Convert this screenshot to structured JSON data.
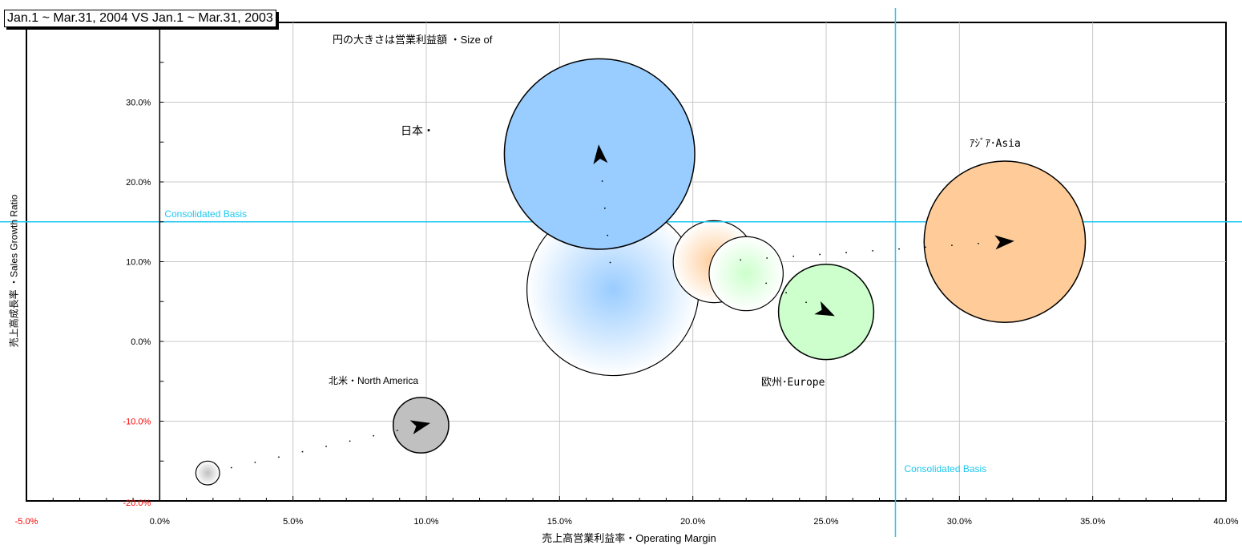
{
  "title": "Jan.1 ~ Mar.31, 2004 VS Jan.1 ~ Mar.31, 2003",
  "subtitle": "円の大きさは営業利益額 ・Size of",
  "colors": {
    "grid": "#c8c8c8",
    "reference": "#1ec8f0",
    "negative_tick": "#ff0000"
  },
  "chart_data": {
    "type": "bubble",
    "xlabel": "売上高営業利益率・Operating Margin",
    "ylabel": "売上高成長率 ・Sales Growth Ratio",
    "xlim": [
      -5,
      40
    ],
    "ylim": [
      -20,
      40
    ],
    "x_ticks": [
      "-5.0%",
      "0.0%",
      "5.0%",
      "10.0%",
      "15.0%",
      "20.0%",
      "25.0%",
      "30.0%",
      "35.0%",
      "40.0%"
    ],
    "y_ticks": [
      "-20.0%",
      "-10.0%",
      "0.0%",
      "10.0%",
      "20.0%",
      "30.0%",
      "40.0%"
    ],
    "grid": true,
    "reference_lines": [
      {
        "axis": "y",
        "value": 15,
        "label": "Consolidated Basis"
      },
      {
        "axis": "x",
        "value": 27.6,
        "label": "Consolidated Basis"
      }
    ],
    "series": [
      {
        "name": "日本・",
        "color": "#99ccff",
        "from": {
          "x": 17.0,
          "y": 6.5,
          "size": 3.25
        },
        "to": {
          "x": 16.5,
          "y": 23.5,
          "size": 3.6
        }
      },
      {
        "name": "北米・North America",
        "color": "#c0c0c0",
        "from": {
          "x": 1.8,
          "y": -16.5,
          "size": 0.45
        },
        "to": {
          "x": 9.8,
          "y": -10.5,
          "size": 1.05
        }
      },
      {
        "name": "ｱｼﾞｱ･Asia",
        "color": "#ffcc99",
        "from": {
          "x": 20.8,
          "y": 10.0,
          "size": 1.55
        },
        "to": {
          "x": 31.7,
          "y": 12.5,
          "size": 3.05
        }
      },
      {
        "name": "欧州･Europe",
        "color": "#ccffcc",
        "from": {
          "x": 22.0,
          "y": 8.5,
          "size": 1.4
        },
        "to": {
          "x": 25.0,
          "y": 3.7,
          "size": 1.8
        }
      }
    ]
  }
}
